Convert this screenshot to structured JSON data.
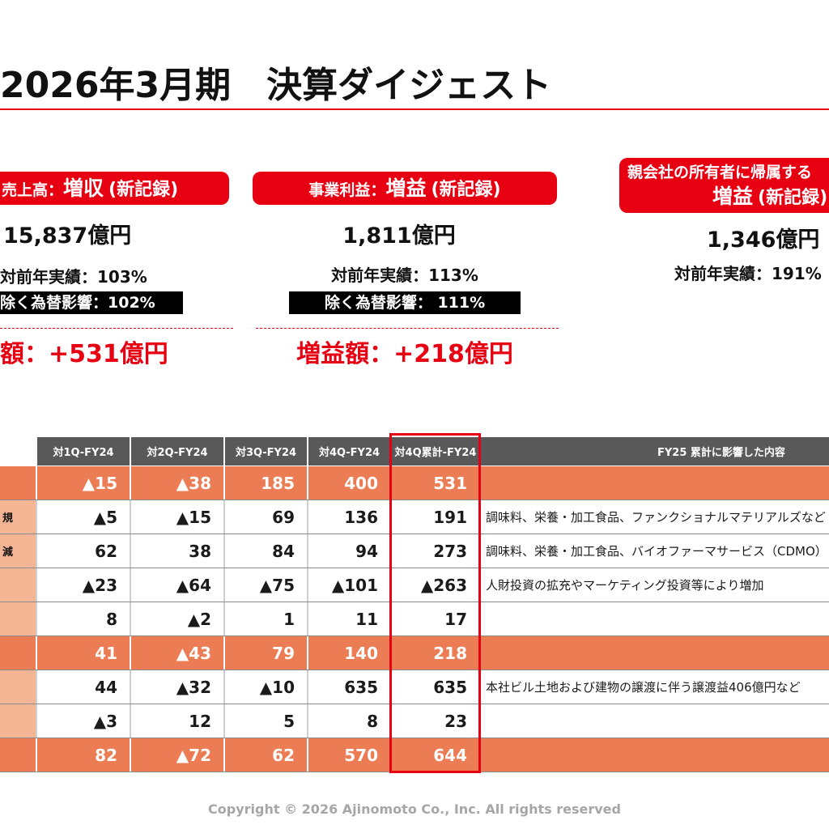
{
  "title": "2026年3月期　決算ダイジェスト",
  "highlights": {
    "sales": {
      "badge_prefix": "売上高：",
      "badge_result": "増収",
      "badge_note": "(新記録)",
      "amount": "15,837億円",
      "vs_prior_year": "対前年実績：103%",
      "excl_fx": "除く為替影響：102%",
      "change": "額：+531億円"
    },
    "business_profit": {
      "badge_prefix": "事業利益：",
      "badge_result": "増益",
      "badge_note": "(新記録)",
      "amount": "1,811億円",
      "vs_prior_year": "対前年実績：113%",
      "excl_fx": "除く為替影響： 111%",
      "change": "増益額：+218億円"
    },
    "net_profit": {
      "badge_line1": "親会社の所有者に帰属する",
      "badge_result": "増益",
      "badge_note": "(新記録)",
      "amount": "1,346億円",
      "vs_prior_year": "対前年実績：191%"
    }
  },
  "table": {
    "headers": [
      "対1Q-FY24",
      "対2Q-FY24",
      "対3Q-FY24",
      "対4Q-FY24",
      "対4Q累計-FY24",
      "FY25 累計に影響した内容"
    ],
    "rows": [
      {
        "values": [
          "▲15",
          "▲38",
          "185",
          "400",
          "531"
        ]
      },
      {
        "label": "規",
        "values": [
          "▲5",
          "▲15",
          "69",
          "136",
          "191"
        ],
        "note": "調味料、栄養・加工食品、ファンクショナルマテリアルズなど"
      },
      {
        "label": "減",
        "values": [
          "62",
          "38",
          "84",
          "94",
          "273"
        ],
        "note": "調味料、栄養・加工食品、バイオファーマサービス（CDMO）"
      },
      {
        "values": [
          "▲23",
          "▲64",
          "▲75",
          "▲101",
          "▲263"
        ],
        "note": "人財投資の拡充やマーケティング投資等により増加"
      },
      {
        "values": [
          "8",
          "▲2",
          "1",
          "11",
          "17"
        ]
      },
      {
        "values": [
          "41",
          "▲43",
          "79",
          "140",
          "218"
        ]
      },
      {
        "values": [
          "44",
          "▲32",
          "▲10",
          "635",
          "635"
        ],
        "note": "本社ビル土地および建物の譲渡に伴う譲渡益406億円など"
      },
      {
        "values": [
          "▲3",
          "12",
          "5",
          "8",
          "23"
        ]
      },
      {
        "values": [
          "82",
          "▲72",
          "62",
          "570",
          "644"
        ]
      }
    ]
  },
  "footer": "Copyright © 2026 Ajinomoto Co., Inc. All rights reserved",
  "colors": {
    "accent": "#E60012",
    "total_row": "#EC7C53",
    "label_cell": "#F4B595",
    "table_header": "#595959",
    "footer_text": "#A6A6A6"
  }
}
